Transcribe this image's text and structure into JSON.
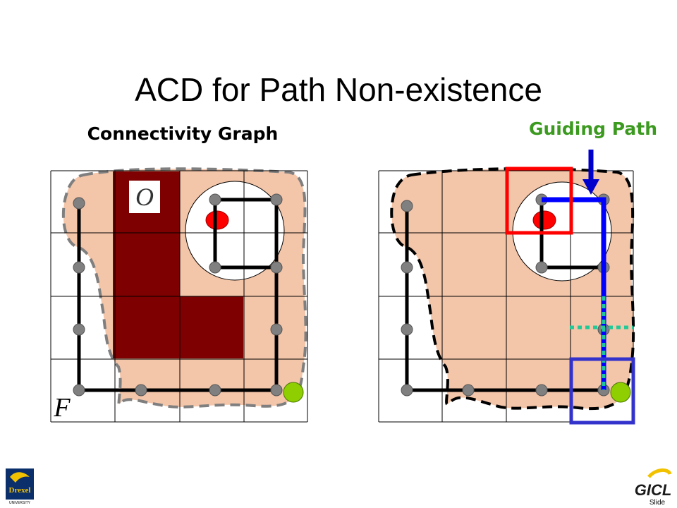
{
  "title": "ACD for Path Non-existence",
  "left_panel": {
    "label": "Connectivity Graph",
    "obstacle_label": "O",
    "free_space_label": "F"
  },
  "right_panel": {
    "label": "Guiding Path"
  },
  "footer": {
    "logo_left_name": "Drexel",
    "logo_left_sub": "UNIVERSITY",
    "logo_right": "GICL",
    "slide_label": "Slide"
  }
}
